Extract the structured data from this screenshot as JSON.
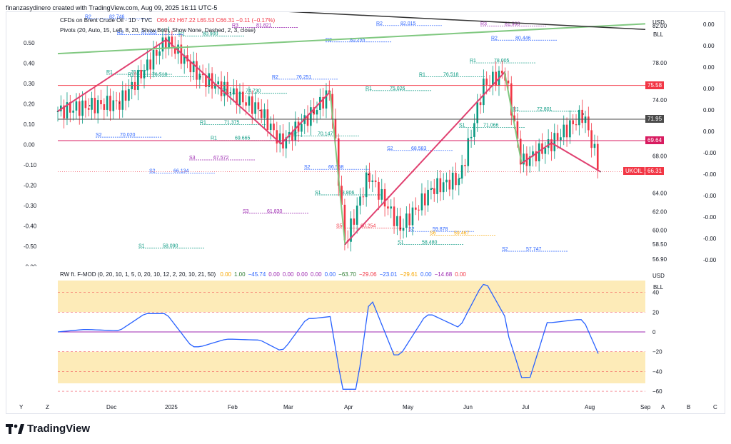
{
  "attribution": "finanzasydinero created with TradingView.com, Aug 09, 2025 16:11 UTC-5",
  "main": {
    "symbol": "CFDs on Brent Crude Oil · 1D · TVC",
    "ohlc": "O66.42 H67.22 L65.53 C66.31 −0.11 (−0.17%)",
    "indicator": "Pivots (20, Auto, 15, Left, 8, 20, Show Both, Show None, Dashed, 2, 3, close)",
    "currency": "USD",
    "unit": "BLL",
    "price_labels": [
      "82.00",
      "78.00",
      "74.00",
      "71.95",
      "68.00",
      "66.31",
      "64.00",
      "62.00",
      "60.00",
      "58.50",
      "56.90"
    ],
    "tags": [
      {
        "label": "75.58",
        "color": "#f23645"
      },
      {
        "label": "71.95",
        "color": "#4a4a4a"
      },
      {
        "label": "69.64",
        "color": "#d81b60"
      },
      {
        "label": "UKOIL",
        "color": "#f23645"
      },
      {
        "label": "66.31",
        "color": "#f23645"
      }
    ],
    "left_axis": [
      "0.50",
      "0.40",
      "0.30",
      "0.20",
      "0.10",
      "0.00",
      "-0.10",
      "-0.20",
      "-0.30",
      "-0.40",
      "-0.50",
      "-0.00"
    ],
    "right_axis": [
      "0.00",
      "0.00",
      "0.00",
      "0.00",
      "0.00",
      "0.00",
      "-0.00",
      "-0.00",
      "-0.00",
      "-0.00",
      "-0.00",
      "-0.00"
    ]
  },
  "osc": {
    "title": "RW ft. F-MOD (0, 20, 10, 1, 5, 0, 20, 10, 12, 2, 20, 10, 21, 50)",
    "values": [
      {
        "v": "0.00",
        "c": "#f7a600"
      },
      {
        "v": "1.00",
        "c": "#2e7d32"
      },
      {
        "v": "−45.74",
        "c": "#2962ff"
      },
      {
        "v": "0.00",
        "c": "#9c27b0"
      },
      {
        "v": "0.00",
        "c": "#9c27b0"
      },
      {
        "v": "0.00",
        "c": "#9c27b0"
      },
      {
        "v": "0.00",
        "c": "#9c27b0"
      },
      {
        "v": "0.00",
        "c": "#2962ff"
      },
      {
        "v": "−63.70",
        "c": "#2e7d32"
      },
      {
        "v": "−29.06",
        "c": "#f23645"
      },
      {
        "v": "−23.01",
        "c": "#2962ff"
      },
      {
        "v": "−29.61",
        "c": "#f7a600"
      },
      {
        "v": "0.00",
        "c": "#2962ff"
      },
      {
        "v": "−14.68",
        "c": "#9c27b0"
      },
      {
        "v": "0.00",
        "c": "#f23645"
      }
    ],
    "currency": "USD",
    "unit": "BLL",
    "axis": [
      "40",
      "20",
      "0",
      "−20",
      "−40",
      "−60"
    ]
  },
  "chart_data": {
    "type": "line",
    "title": "CFDs on Brent Crude Oil · 1D · TVC",
    "x_ticks": [
      "Y",
      "Z",
      "Dec",
      "2025",
      "Feb",
      "Mar",
      "Apr",
      "May",
      "Jun",
      "Jul",
      "Aug",
      "Sep",
      "A",
      "B",
      "C"
    ],
    "series": [
      {
        "name": "close",
        "dates": [
          "Nov 25",
          "Dec 10",
          "Dec 24",
          "Jan 15",
          "Jan 31",
          "Feb 14",
          "Feb 28",
          "Mar 10",
          "Mar 25",
          "Apr 02",
          "Apr 09",
          "Apr 20",
          "May 05",
          "May 20",
          "Jun 02",
          "Jun 13",
          "Jun 23",
          "Jul 01",
          "Jul 15",
          "Jul 30",
          "Aug 07"
        ],
        "values": [
          72.8,
          73.4,
          73.7,
          80.5,
          76.5,
          74.8,
          72.9,
          69.3,
          72.7,
          74.9,
          58.5,
          66.0,
          60.2,
          64.5,
          65.6,
          75.6,
          77.0,
          67.2,
          69.4,
          72.5,
          66.3
        ]
      }
    ],
    "ylim": [
      56.9,
      83.0
    ],
    "oscillator": {
      "axis_ticks": [
        40,
        20,
        0,
        -20,
        -40,
        -60
      ],
      "ylim": [
        -65,
        52
      ]
    },
    "pivot_levels": [
      {
        "label": "R2",
        "value": "82.746"
      },
      {
        "label": "R1",
        "value": "80.900"
      },
      {
        "label": "R2",
        "value": "76.251"
      },
      {
        "label": "R1",
        "value": "75.026"
      },
      {
        "label": "S1",
        "value": "71.066"
      },
      {
        "label": "S2",
        "value": "70.020"
      },
      {
        "label": "S3",
        "value": "67.572"
      },
      {
        "label": "R3",
        "value": "84.635"
      },
      {
        "label": "R2",
        "value": "82.015"
      },
      {
        "label": "R1",
        "value": "78.005"
      },
      {
        "label": "R1",
        "value": "76.777"
      },
      {
        "label": "R1",
        "value": "71.375"
      },
      {
        "label": "R1",
        "value": "70.147"
      },
      {
        "label": "S2",
        "value": "68.583"
      },
      {
        "label": "R3",
        "value": "81.960"
      },
      {
        "label": "R2",
        "value": "81.043"
      },
      {
        "label": "R1",
        "value": "69.665"
      },
      {
        "label": "S2",
        "value": "66.558"
      },
      {
        "label": "S1",
        "value": "58.480"
      },
      {
        "label": "R2",
        "value": "80.446"
      },
      {
        "label": "R1",
        "value": "76.518"
      },
      {
        "label": "R1",
        "value": "74.730"
      },
      {
        "label": "S1",
        "value": "63.806"
      },
      {
        "label": "S2",
        "value": "59.878"
      },
      {
        "label": "S2",
        "value": "57.747"
      },
      {
        "label": "S1",
        "value": "58.090"
      },
      {
        "label": "R3",
        "value": "81.821"
      },
      {
        "label": "R2",
        "value": "80.255"
      },
      {
        "label": "R1",
        "value": "76.518"
      },
      {
        "label": "R1",
        "value": "72.801"
      },
      {
        "label": "S2",
        "value": "66.134"
      },
      {
        "label": "S3",
        "value": "61.830"
      },
      {
        "label": "S5",
        "value": "60.254"
      },
      {
        "label": "S6",
        "value": "59.467"
      }
    ]
  }
}
